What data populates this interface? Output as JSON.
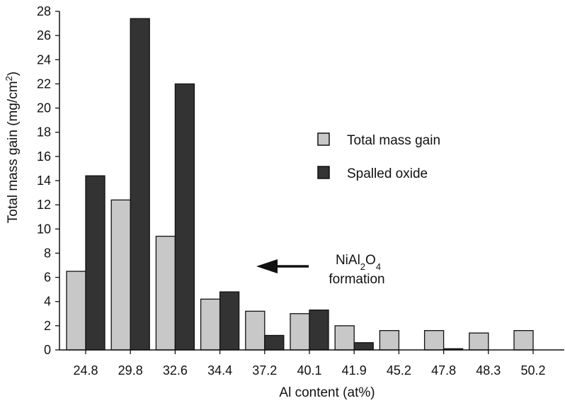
{
  "chart_data": {
    "type": "bar",
    "categories": [
      "24.8",
      "29.8",
      "32.6",
      "34.4",
      "37.2",
      "40.1",
      "41.9",
      "45.2",
      "47.8",
      "48.3",
      "50.2"
    ],
    "series": [
      {
        "name": "Total mass gain",
        "values": [
          6.5,
          12.4,
          9.4,
          4.2,
          3.2,
          3.0,
          2.0,
          1.6,
          1.6,
          1.4,
          1.6
        ],
        "color": "#c8c8c8"
      },
      {
        "name": "Spalled oxide",
        "values": [
          14.4,
          27.4,
          22.0,
          4.8,
          1.2,
          3.3,
          0.6,
          0.0,
          0.1,
          0.0,
          0.0
        ],
        "color": "#333333"
      }
    ],
    "xlabel": "Al content (at%)",
    "ylabel": {
      "main": "Total mass gain (mg/cm",
      "sup": "2",
      "tail": ")"
    },
    "ylim": [
      0,
      28
    ],
    "yticks": [
      0,
      2,
      4,
      6,
      8,
      10,
      12,
      14,
      16,
      18,
      20,
      22,
      24,
      26,
      28
    ],
    "legend_position": "center-right",
    "grid": false,
    "annotation": {
      "line1": {
        "base": "NiAl",
        "sub1": "2",
        "mid": "O",
        "sub2": "4"
      },
      "line2": "formation"
    }
  }
}
